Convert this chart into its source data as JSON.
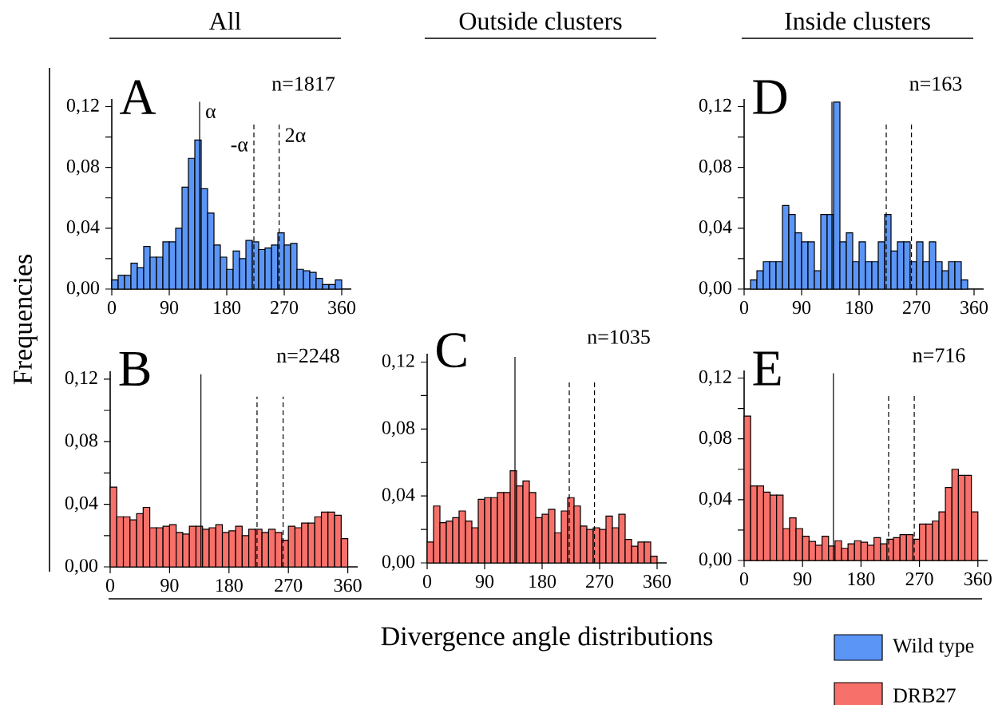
{
  "chart_data": [
    {
      "type": "histogram",
      "title": "A",
      "subtitle": "All",
      "ylabel": "Frequencies",
      "annotations": [
        "n=1817"
      ],
      "bins": [
        0,
        10,
        20,
        30,
        40,
        50,
        60,
        70,
        80,
        90,
        100,
        110,
        120,
        130,
        140,
        150,
        160,
        170,
        180,
        190,
        200,
        210,
        220,
        230,
        240,
        250,
        260,
        270,
        280,
        290,
        300,
        310,
        320,
        330,
        340,
        350,
        360
      ],
      "series": [
        {
          "color": "#5b95f5",
          "values": [
            0.006,
            0.009,
            0.009,
            0.017,
            0.014,
            0.028,
            0.021,
            0.021,
            0.031,
            0.031,
            0.04,
            0.067,
            0.086,
            0.098,
            0.066,
            0.05,
            0.029,
            0.021,
            0.013,
            0.025,
            0.02,
            0.032,
            0.031,
            0.026,
            0.027,
            0.029,
            0.037,
            0.029,
            0.03,
            0.013,
            0.012,
            0.011,
            0.007,
            0.003,
            0.003,
            0.006
          ]
        }
      ],
      "xlim": [
        0,
        375
      ],
      "xticks": [
        0,
        90,
        180,
        270,
        360
      ],
      "ylim": [
        0,
        0.125
      ],
      "yticks": [
        {
          "value": 0,
          "label": "0,00"
        },
        {
          "value": 0.02,
          "label": null
        },
        {
          "value": 0.04,
          "label": "0,04"
        },
        {
          "value": 0.06,
          "label": null
        },
        {
          "value": 0.08,
          "label": "0,08"
        },
        {
          "value": 0.1,
          "label": null
        },
        {
          "value": 0.12,
          "label": "0,12"
        }
      ],
      "ref_lines": [
        {
          "axis": "x",
          "value": 137.5,
          "label": "α",
          "line_style": "solid"
        },
        {
          "axis": "x",
          "value": 222.5,
          "label": "-α",
          "line_style": "dashed"
        },
        {
          "axis": "x",
          "value": 262,
          "label": "2α",
          "line_style": "dashed"
        }
      ]
    },
    {
      "type": "histogram",
      "title": "B",
      "annotations": [
        "n=2248"
      ],
      "bins": [
        0,
        10,
        20,
        30,
        40,
        50,
        60,
        70,
        80,
        90,
        100,
        110,
        120,
        130,
        140,
        150,
        160,
        170,
        180,
        190,
        200,
        210,
        220,
        230,
        240,
        250,
        260,
        270,
        280,
        290,
        300,
        310,
        320,
        330,
        340,
        350,
        360
      ],
      "series": [
        {
          "color": "#f7706a",
          "values": [
            0.051,
            0.032,
            0.032,
            0.03,
            0.034,
            0.038,
            0.025,
            0.025,
            0.026,
            0.027,
            0.022,
            0.021,
            0.026,
            0.026,
            0.024,
            0.025,
            0.027,
            0.022,
            0.023,
            0.026,
            0.02,
            0.024,
            0.024,
            0.022,
            0.024,
            0.022,
            0.017,
            0.026,
            0.025,
            0.028,
            0.028,
            0.032,
            0.035,
            0.035,
            0.033,
            0.018
          ]
        }
      ],
      "xlim": [
        0,
        375
      ],
      "xticks": [
        0,
        90,
        180,
        270,
        360
      ],
      "ylim": [
        0,
        0.125
      ],
      "yticks": [
        {
          "value": 0,
          "label": "0,00"
        },
        {
          "value": 0.02,
          "label": null
        },
        {
          "value": 0.04,
          "label": "0,04"
        },
        {
          "value": 0.06,
          "label": null
        },
        {
          "value": 0.08,
          "label": "0,08"
        },
        {
          "value": 0.1,
          "label": null
        },
        {
          "value": 0.12,
          "label": "0,12"
        }
      ],
      "ref_lines": [
        {
          "axis": "x",
          "value": 137.5,
          "line_style": "solid"
        },
        {
          "axis": "x",
          "value": 222.5,
          "line_style": "dashed"
        },
        {
          "axis": "x",
          "value": 262,
          "line_style": "dashed"
        }
      ]
    },
    {
      "type": "histogram",
      "title": "C",
      "subtitle": "Outside clusters",
      "xlabel": "Divergence angle distributions",
      "annotations": [
        "n=1035"
      ],
      "bins": [
        0,
        10,
        20,
        30,
        40,
        50,
        60,
        70,
        80,
        90,
        100,
        110,
        120,
        130,
        140,
        150,
        160,
        170,
        180,
        190,
        200,
        210,
        220,
        230,
        240,
        250,
        260,
        270,
        280,
        290,
        300,
        310,
        320,
        330,
        340,
        350,
        360
      ],
      "series": [
        {
          "color": "#f7706a",
          "values": [
            0.0125,
            0.034,
            0.024,
            0.025,
            0.027,
            0.031,
            0.025,
            0.021,
            0.038,
            0.039,
            0.039,
            0.042,
            0.042,
            0.055,
            0.046,
            0.049,
            0.042,
            0.027,
            0.029,
            0.032,
            0.018,
            0.031,
            0.039,
            0.034,
            0.022,
            0.02,
            0.021,
            0.02,
            0.028,
            0.021,
            0.029,
            0.014,
            0.01,
            0.0125,
            0.0125,
            0.004
          ]
        }
      ],
      "xlim": [
        0,
        375
      ],
      "xticks": [
        0,
        90,
        180,
        270,
        360
      ],
      "ylim": [
        0,
        0.125
      ],
      "yticks": [
        {
          "value": 0,
          "label": "0,00"
        },
        {
          "value": 0.02,
          "label": null
        },
        {
          "value": 0.04,
          "label": "0,04"
        },
        {
          "value": 0.06,
          "label": null
        },
        {
          "value": 0.08,
          "label": "0,08"
        },
        {
          "value": 0.1,
          "label": null
        },
        {
          "value": 0.12,
          "label": "0,12"
        }
      ],
      "ref_lines": [
        {
          "axis": "x",
          "value": 137.5,
          "line_style": "solid"
        },
        {
          "axis": "x",
          "value": 222.5,
          "line_style": "dashed"
        },
        {
          "axis": "x",
          "value": 262,
          "line_style": "dashed"
        }
      ]
    },
    {
      "type": "histogram",
      "title": "D",
      "subtitle": "Inside clusters",
      "annotations": [
        "n=163"
      ],
      "legend": "bottom right",
      "bins": [
        10,
        20,
        30,
        40,
        50,
        60,
        70,
        80,
        90,
        100,
        110,
        120,
        130,
        140,
        150,
        160,
        170,
        180,
        190,
        200,
        210,
        220,
        230,
        240,
        250,
        260,
        270,
        280,
        290,
        300,
        310,
        320,
        330,
        340,
        350
      ],
      "series": [
        {
          "name": "Wild type",
          "color": "#5b95f5",
          "values": [
            0.006,
            0.012,
            0.018,
            0.018,
            0.018,
            0.055,
            0.049,
            0.037,
            0.031,
            0.031,
            0.012,
            0.049,
            0.049,
            0.123,
            0.031,
            0.037,
            0.018,
            0.031,
            0.018,
            0.018,
            0.031,
            0.049,
            0.025,
            0.031,
            0.031,
            0.018,
            0.031,
            0.018,
            0.031,
            0.018,
            0.012,
            0.018,
            0.018,
            0.006
          ]
        }
      ],
      "xlim": [
        0,
        375
      ],
      "xticks": [
        0,
        90,
        180,
        270,
        360
      ],
      "ylim": [
        0,
        0.125
      ],
      "yticks": [
        {
          "value": 0,
          "label": "0,00"
        },
        {
          "value": 0.02,
          "label": null
        },
        {
          "value": 0.04,
          "label": "0,04"
        },
        {
          "value": 0.06,
          "label": null
        },
        {
          "value": 0.08,
          "label": "0,08"
        },
        {
          "value": 0.1,
          "label": null
        },
        {
          "value": 0.12,
          "label": "0,12"
        }
      ],
      "ref_lines": [
        {
          "axis": "x",
          "value": 137.5,
          "line_style": "solid"
        },
        {
          "axis": "x",
          "value": 222.5,
          "line_style": "dashed"
        },
        {
          "axis": "x",
          "value": 262,
          "line_style": "dashed"
        }
      ]
    },
    {
      "type": "histogram",
      "title": "E",
      "annotations": [
        "n=716"
      ],
      "legend": "bottom right",
      "bins": [
        0,
        10,
        20,
        30,
        40,
        50,
        60,
        70,
        80,
        90,
        100,
        110,
        120,
        130,
        140,
        150,
        160,
        170,
        180,
        190,
        200,
        210,
        220,
        230,
        240,
        250,
        260,
        270,
        280,
        290,
        300,
        310,
        320,
        330,
        340,
        350,
        360
      ],
      "series": [
        {
          "name": "DRB27",
          "color": "#f7706a",
          "values": [
            0.095,
            0.049,
            0.049,
            0.045,
            0.043,
            0.043,
            0.021,
            0.028,
            0.021,
            0.016,
            0.0125,
            0.01,
            0.016,
            0.0095,
            0.013,
            0.008,
            0.011,
            0.013,
            0.012,
            0.01,
            0.015,
            0.011,
            0.014,
            0.015,
            0.017,
            0.017,
            0.014,
            0.024,
            0.024,
            0.026,
            0.032,
            0.048,
            0.06,
            0.056,
            0.056,
            0.032
          ]
        }
      ],
      "xlim": [
        0,
        375
      ],
      "xticks": [
        0,
        90,
        180,
        270,
        360
      ],
      "ylim": [
        0,
        0.125
      ],
      "yticks": [
        {
          "value": 0,
          "label": "0,00"
        },
        {
          "value": 0.02,
          "label": null
        },
        {
          "value": 0.04,
          "label": "0,04"
        },
        {
          "value": 0.06,
          "label": null
        },
        {
          "value": 0.08,
          "label": "0,08"
        },
        {
          "value": 0.1,
          "label": null
        },
        {
          "value": 0.12,
          "label": "0,12"
        }
      ],
      "ref_lines": [
        {
          "axis": "x",
          "value": 137.5,
          "line_style": "solid"
        },
        {
          "axis": "x",
          "value": 222.5,
          "line_style": "dashed"
        },
        {
          "axis": "x",
          "value": 262,
          "line_style": "dashed"
        }
      ]
    }
  ]
}
